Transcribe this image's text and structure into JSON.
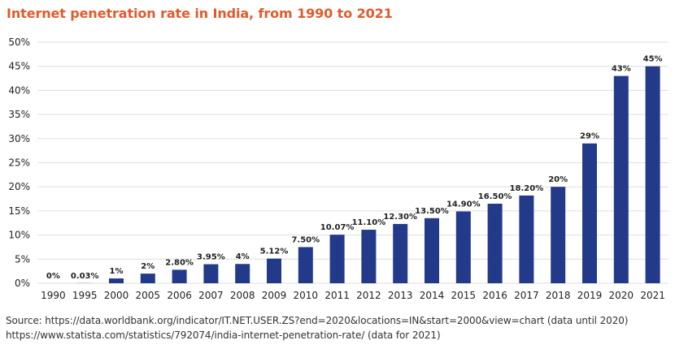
{
  "title": "Internet penetration rate in India, from 1990 to 2021",
  "sources": [
    "Source: https://data.worldbank.org/indicator/IT.NET.USER.ZS?end=2020&locations=IN&start=2000&view=chart (data until 2020)",
    "https://www.statista.com/statistics/792074/india-internet-penetration-rate/ (data for 2021)"
  ],
  "colors": {
    "title": "#e15b2b",
    "bar": "#233a8b",
    "grid": "#dedede",
    "text": "#222222"
  },
  "chart_data": {
    "type": "bar",
    "title": "Internet penetration rate in India, from 1990 to 2021",
    "xlabel": "",
    "ylabel": "",
    "ylim": [
      0,
      50
    ],
    "yticks": [
      "0%",
      "5%",
      "10%",
      "15%",
      "20%",
      "25%",
      "30%",
      "35%",
      "40%",
      "45%",
      "50%"
    ],
    "grid": true,
    "categories": [
      "1990",
      "1995",
      "2000",
      "2005",
      "2006",
      "2007",
      "2008",
      "2009",
      "2010",
      "2011",
      "2012",
      "2013",
      "2014",
      "2015",
      "2016",
      "2017",
      "2018",
      "2019",
      "2020",
      "2021"
    ],
    "values": [
      0,
      0.03,
      1,
      2,
      2.8,
      3.95,
      4,
      5.12,
      7.5,
      10.07,
      11.1,
      12.3,
      13.5,
      14.9,
      16.5,
      18.2,
      20,
      29,
      43,
      45
    ],
    "labels": [
      "0%",
      "0.03%",
      "1%",
      "2%",
      "2.80%",
      "3.95%",
      "4%",
      "5.12%",
      "7.50%",
      "10.07%",
      "11.10%",
      "12.30%",
      "13.50%",
      "14.90%",
      "16.50%",
      "18.20%",
      "20%",
      "29%",
      "43%",
      "45%"
    ]
  }
}
